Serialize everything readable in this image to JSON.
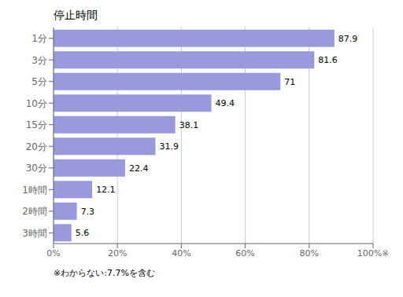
{
  "chart_data": {
    "type": "bar",
    "title": "停止時間",
    "orientation": "horizontal",
    "categories": [
      "1分",
      "3分",
      "5分",
      "10分",
      "15分",
      "20分",
      "30分",
      "1時間",
      "2時間",
      "3時間"
    ],
    "values": [
      87.9,
      81.6,
      71.0,
      49.4,
      38.1,
      31.9,
      22.4,
      12.1,
      7.3,
      5.6
    ],
    "color": "#9999dd",
    "xlim": [
      0,
      100
    ],
    "xticks": [
      {
        "value": 0,
        "label": "0%"
      },
      {
        "value": 20,
        "label": "20%"
      },
      {
        "value": 40,
        "label": "40%"
      },
      {
        "value": 60,
        "label": "60%"
      },
      {
        "value": 80,
        "label": "80%"
      },
      {
        "value": 100,
        "label": "100%※"
      }
    ],
    "grid": true,
    "data_labels": true,
    "annotations": [
      "※わからない:7.7%を含む"
    ]
  }
}
